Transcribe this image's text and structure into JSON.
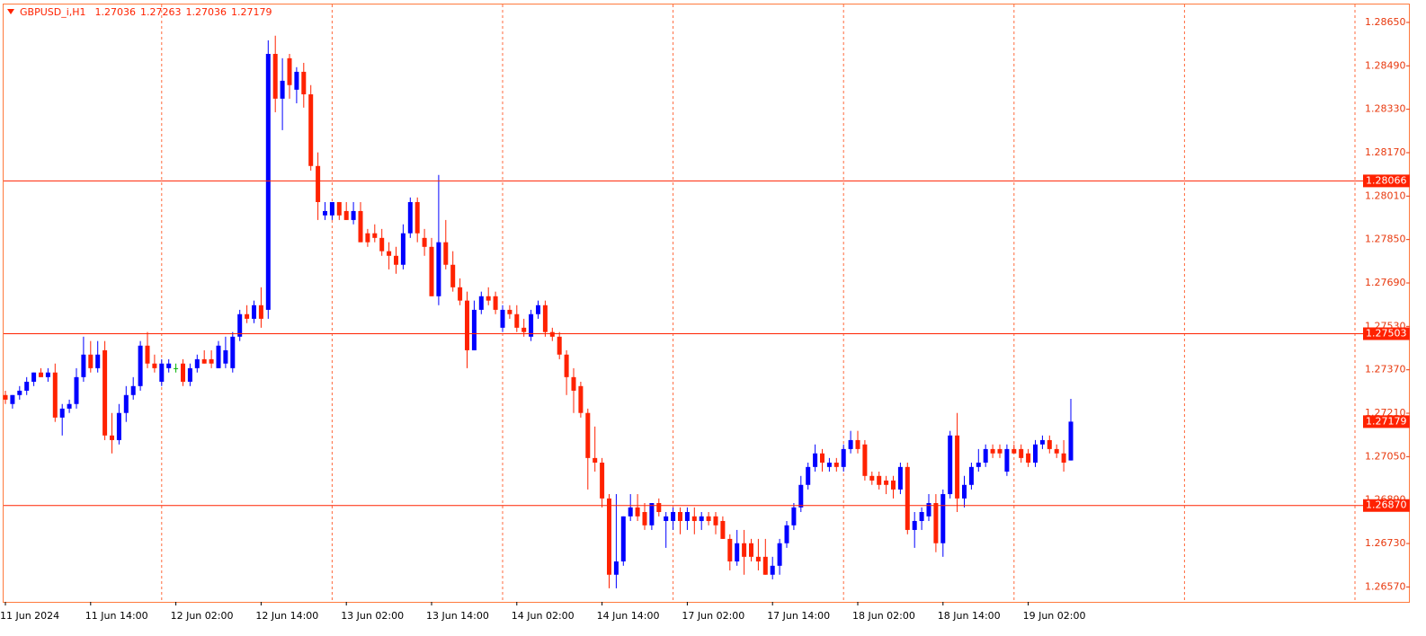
{
  "chart_data": {
    "type": "candlestick",
    "title": "GBPUSD_i,H1",
    "categories": [
      "11 Jun 2024",
      null,
      null,
      null,
      null,
      null,
      null,
      null,
      null,
      null,
      null,
      null,
      "11 Jun 14:00",
      null,
      null,
      null,
      null,
      null,
      null,
      null,
      null,
      null,
      null,
      null,
      "12 Jun 02:00",
      null,
      null,
      null,
      null,
      null,
      null,
      null,
      null,
      null,
      null,
      null,
      "12 Jun 14:00",
      null,
      null,
      null,
      null,
      null,
      null,
      null,
      null,
      null,
      null,
      null,
      "13 Jun 02:00",
      null,
      null,
      null,
      null,
      null,
      null,
      null,
      null,
      null,
      null,
      null,
      "13 Jun 14:00",
      null,
      null,
      null,
      null,
      null,
      null,
      null,
      null,
      null,
      null,
      null,
      "14 Jun 02:00",
      null,
      null,
      null,
      null,
      null,
      null,
      null,
      null,
      null,
      null,
      null,
      "14 Jun 14:00",
      null,
      null,
      null,
      null,
      null,
      null,
      null,
      null,
      null,
      null,
      null,
      "17 Jun 02:00",
      null,
      null,
      null,
      null,
      null,
      null,
      null,
      null,
      null,
      null,
      null,
      "17 Jun 14:00",
      null,
      null,
      null,
      null,
      null,
      null,
      null,
      null,
      null,
      null,
      null,
      "18 Jun 02:00",
      null,
      null,
      null,
      null,
      null,
      null,
      null,
      null,
      null,
      null,
      null,
      "18 Jun 14:00",
      null,
      null,
      null,
      null,
      null,
      null,
      null,
      null,
      null,
      null,
      null,
      "19 Jun 02:00",
      null,
      null,
      null,
      null,
      null,
      null
    ],
    "open": [
      1.27277,
      1.27244,
      1.27277,
      1.27293,
      1.27326,
      1.2736,
      1.27343,
      1.2736,
      1.27194,
      1.27227,
      1.27244,
      1.27343,
      1.27426,
      1.27376,
      1.27442,
      1.27128,
      1.27111,
      1.27211,
      1.27277,
      1.2731,
      1.27459,
      1.27393,
      1.27326,
      1.27376,
      1.27376,
      1.27393,
      1.27326,
      1.27376,
      1.27409,
      1.27409,
      1.27376,
      1.27393,
      1.27376,
      1.27492,
      1.27575,
      1.27558,
      1.27608,
      1.27591,
      1.28534,
      1.28369,
      1.28518,
      1.28402,
      1.28468,
      1.28385,
      1.28121,
      1.27939,
      1.27939,
      1.27988,
      1.27955,
      1.27922,
      1.27955,
      1.27873,
      1.27873,
      1.27856,
      1.27807,
      1.2779,
      1.27757,
      1.27873,
      1.27988,
      1.27856,
      1.27823,
      1.27641,
      1.2784,
      1.27757,
      1.27674,
      1.27625,
      1.27442,
      1.27591,
      1.27641,
      1.27641,
      1.27525,
      1.27591,
      1.27575,
      1.27525,
      1.27492,
      1.27575,
      1.27608,
      1.27509,
      1.27492,
      1.27426,
      1.27343,
      1.2731,
      1.27211,
      1.27045,
      1.27028,
      1.26896,
      1.26615,
      1.26664,
      1.2683,
      1.26863,
      1.26846,
      1.26797,
      1.26879,
      1.26813,
      1.26813,
      1.26846,
      1.26813,
      1.2683,
      1.26813,
      1.2683,
      1.2683,
      1.26813,
      1.26747,
      1.26664,
      1.26731,
      1.26731,
      1.26681,
      1.26681,
      1.26615,
      1.26648,
      1.26731,
      1.26797,
      1.26863,
      1.26946,
      1.27012,
      1.27062,
      1.27012,
      1.27028,
      1.27012,
      1.27078,
      1.27111,
      1.27095,
      1.26979,
      1.26979,
      1.26962,
      1.26962,
      1.26929,
      1.27012,
      1.2678,
      1.26813,
      1.2683,
      1.26879,
      1.26731,
      1.26912,
      1.27128,
      1.26896,
      1.26946,
      1.27012,
      1.27028,
      1.27078,
      1.27078,
      1.26995,
      1.27078,
      1.27078,
      1.27062,
      1.27028,
      1.27095,
      1.27111,
      1.27078,
      1.27062,
      1.27036
    ],
    "high": [
      1.27293,
      1.27277,
      1.2731,
      1.27343,
      1.2736,
      1.27376,
      1.27376,
      1.27393,
      1.27244,
      1.2726,
      1.27376,
      1.27492,
      1.27476,
      1.27476,
      1.27476,
      1.27211,
      1.27244,
      1.2731,
      1.27343,
      1.27476,
      1.27509,
      1.27426,
      1.27409,
      1.27409,
      1.27393,
      1.27409,
      1.27393,
      1.27426,
      1.27442,
      1.27442,
      1.27476,
      1.27492,
      1.27509,
      1.27591,
      1.27608,
      1.27625,
      1.27674,
      1.28584,
      1.28601,
      1.28518,
      1.28534,
      1.28485,
      1.28501,
      1.28419,
      1.28171,
      1.27988,
      1.27988,
      1.27988,
      1.27988,
      1.27988,
      1.27988,
      1.27889,
      1.27906,
      1.27889,
      1.2784,
      1.27823,
      1.27906,
      1.28005,
      1.28005,
      1.27889,
      1.27856,
      1.28088,
      1.27922,
      1.27807,
      1.27707,
      1.27658,
      1.27625,
      1.27658,
      1.27674,
      1.27658,
      1.27608,
      1.27608,
      1.27608,
      1.27558,
      1.27591,
      1.27625,
      1.27625,
      1.27525,
      1.27509,
      1.27442,
      1.27376,
      1.27326,
      1.27227,
      1.27161,
      1.27045,
      1.26912,
      1.26912,
      1.2683,
      1.26912,
      1.26912,
      1.26879,
      1.26879,
      1.26896,
      1.26846,
      1.26863,
      1.26863,
      1.26863,
      1.26863,
      1.26846,
      1.26846,
      1.26846,
      1.2683,
      1.26764,
      1.2678,
      1.2678,
      1.26747,
      1.26747,
      1.26747,
      1.26681,
      1.26747,
      1.26813,
      1.26879,
      1.26979,
      1.27028,
      1.27095,
      1.27078,
      1.27045,
      1.27045,
      1.27095,
      1.27145,
      1.27145,
      1.27111,
      1.26995,
      1.26995,
      1.26979,
      1.26979,
      1.27028,
      1.27028,
      1.26846,
      1.26863,
      1.26912,
      1.26912,
      1.26929,
      1.27145,
      1.27211,
      1.26979,
      1.27028,
      1.27078,
      1.27095,
      1.27095,
      1.27095,
      1.27095,
      1.27095,
      1.27095,
      1.27078,
      1.27111,
      1.27128,
      1.27128,
      1.27095,
      1.27111,
      1.27263
    ],
    "low": [
      1.27244,
      1.27227,
      1.2726,
      1.27277,
      1.2731,
      1.27343,
      1.27326,
      1.27178,
      1.27128,
      1.27211,
      1.27227,
      1.27326,
      1.2736,
      1.2736,
      1.27111,
      1.27062,
      1.27095,
      1.27178,
      1.2726,
      1.27293,
      1.27376,
      1.2736,
      1.2731,
      1.2736,
      1.2736,
      1.2731,
      1.2731,
      1.2736,
      1.27393,
      1.27376,
      1.27376,
      1.27376,
      1.2736,
      1.27476,
      1.27542,
      1.27542,
      1.27525,
      1.27558,
      1.28319,
      1.28253,
      1.28369,
      1.28352,
      1.28336,
      1.28104,
      1.27922,
      1.27922,
      1.27922,
      1.27922,
      1.27922,
      1.27906,
      1.2784,
      1.27823,
      1.2784,
      1.2779,
      1.2774,
      1.27724,
      1.2774,
      1.27856,
      1.2784,
      1.2779,
      1.27641,
      1.27608,
      1.2774,
      1.27658,
      1.27608,
      1.27376,
      1.27442,
      1.27575,
      1.27608,
      1.27575,
      1.27509,
      1.27558,
      1.27509,
      1.27492,
      1.27476,
      1.27558,
      1.27492,
      1.27476,
      1.27409,
      1.27277,
      1.27211,
      1.27194,
      1.26929,
      1.26995,
      1.26863,
      1.26565,
      1.26565,
      1.26648,
      1.26813,
      1.26813,
      1.2678,
      1.2678,
      1.2683,
      1.26714,
      1.2678,
      1.26764,
      1.2678,
      1.26764,
      1.2678,
      1.26797,
      1.26764,
      1.26747,
      1.26631,
      1.26648,
      1.26615,
      1.26664,
      1.26631,
      1.26615,
      1.26598,
      1.26615,
      1.26714,
      1.2678,
      1.26846,
      1.26929,
      1.26995,
      1.26995,
      1.26995,
      1.26995,
      1.26995,
      1.27062,
      1.27062,
      1.26962,
      1.26946,
      1.26929,
      1.26912,
      1.26896,
      1.26912,
      1.26764,
      1.26714,
      1.2678,
      1.26813,
      1.26698,
      1.26681,
      1.26896,
      1.26846,
      1.26863,
      1.26929,
      1.26995,
      1.27012,
      1.27045,
      1.27045,
      1.26979,
      1.27062,
      1.27028,
      1.27012,
      1.27012,
      1.27078,
      1.27062,
      1.27045,
      1.26995,
      1.27036
    ],
    "close": [
      1.2726,
      1.27277,
      1.27293,
      1.27326,
      1.2736,
      1.27343,
      1.2736,
      1.27194,
      1.27227,
      1.27244,
      1.27343,
      1.27426,
      1.27376,
      1.27426,
      1.27128,
      1.27111,
      1.27211,
      1.27277,
      1.2731,
      1.27459,
      1.27393,
      1.27376,
      1.27393,
      1.27393,
      1.27376,
      1.27326,
      1.27376,
      1.27409,
      1.27393,
      1.27393,
      1.27459,
      1.27442,
      1.27492,
      1.27575,
      1.27558,
      1.27608,
      1.27558,
      1.28534,
      1.28369,
      1.28435,
      1.28419,
      1.28468,
      1.28385,
      1.28121,
      1.27988,
      1.27955,
      1.27988,
      1.27939,
      1.27922,
      1.27955,
      1.2784,
      1.2784,
      1.27856,
      1.27807,
      1.2779,
      1.27757,
      1.27873,
      1.27988,
      1.27873,
      1.27823,
      1.27641,
      1.2784,
      1.27757,
      1.27674,
      1.27625,
      1.27442,
      1.27591,
      1.27641,
      1.27625,
      1.27591,
      1.27591,
      1.27575,
      1.27525,
      1.27509,
      1.27575,
      1.27608,
      1.27509,
      1.27492,
      1.27426,
      1.27343,
      1.27293,
      1.27211,
      1.27045,
      1.27028,
      1.26896,
      1.26615,
      1.26664,
      1.2683,
      1.26863,
      1.2683,
      1.26797,
      1.26879,
      1.26846,
      1.2683,
      1.26846,
      1.26813,
      1.26846,
      1.26813,
      1.2683,
      1.26813,
      1.26797,
      1.26747,
      1.26664,
      1.26731,
      1.26681,
      1.26681,
      1.26664,
      1.26615,
      1.26648,
      1.26731,
      1.26797,
      1.26863,
      1.26946,
      1.27012,
      1.27062,
      1.27028,
      1.27028,
      1.27012,
      1.27078,
      1.27111,
      1.27078,
      1.26979,
      1.26962,
      1.26946,
      1.26946,
      1.26929,
      1.27012,
      1.2678,
      1.26813,
      1.26846,
      1.26879,
      1.26731,
      1.26912,
      1.27128,
      1.26896,
      1.26946,
      1.27012,
      1.27028,
      1.27078,
      1.27062,
      1.27062,
      1.27078,
      1.27062,
      1.27045,
      1.27028,
      1.27095,
      1.27111,
      1.27078,
      1.27062,
      1.27028,
      1.27179
    ],
    "up_color": "#0000ff",
    "down_color": "#ff2200",
    "doji_color": "#00b000",
    "ylim": [
      1.26515,
      1.28716
    ],
    "yticks": [
      {
        "value": 1.2865,
        "label": "1.28650"
      },
      {
        "value": 1.2849,
        "label": "1.28490"
      },
      {
        "value": 1.2833,
        "label": "1.28330"
      },
      {
        "value": 1.2817,
        "label": "1.28170"
      },
      {
        "value": 1.2801,
        "label": "1.28010"
      },
      {
        "value": 1.2785,
        "label": "1.27850"
      },
      {
        "value": 1.2769,
        "label": "1.27690"
      },
      {
        "value": 1.2753,
        "label": "1.27530"
      },
      {
        "value": 1.2737,
        "label": "1.27370"
      },
      {
        "value": 1.2721,
        "label": "1.27210"
      },
      {
        "value": 1.2705,
        "label": "1.27050"
      },
      {
        "value": 1.2689,
        "label": "1.26890"
      },
      {
        "value": 1.2673,
        "label": "1.26730"
      },
      {
        "value": 1.2657,
        "label": "1.26570"
      }
    ],
    "levels": [
      1.28066,
      1.27503,
      {
        "value": 1.2687,
        "label": "1.26870"
      }
    ],
    "level_color": "#ff2200",
    "grid": true
  }
}
